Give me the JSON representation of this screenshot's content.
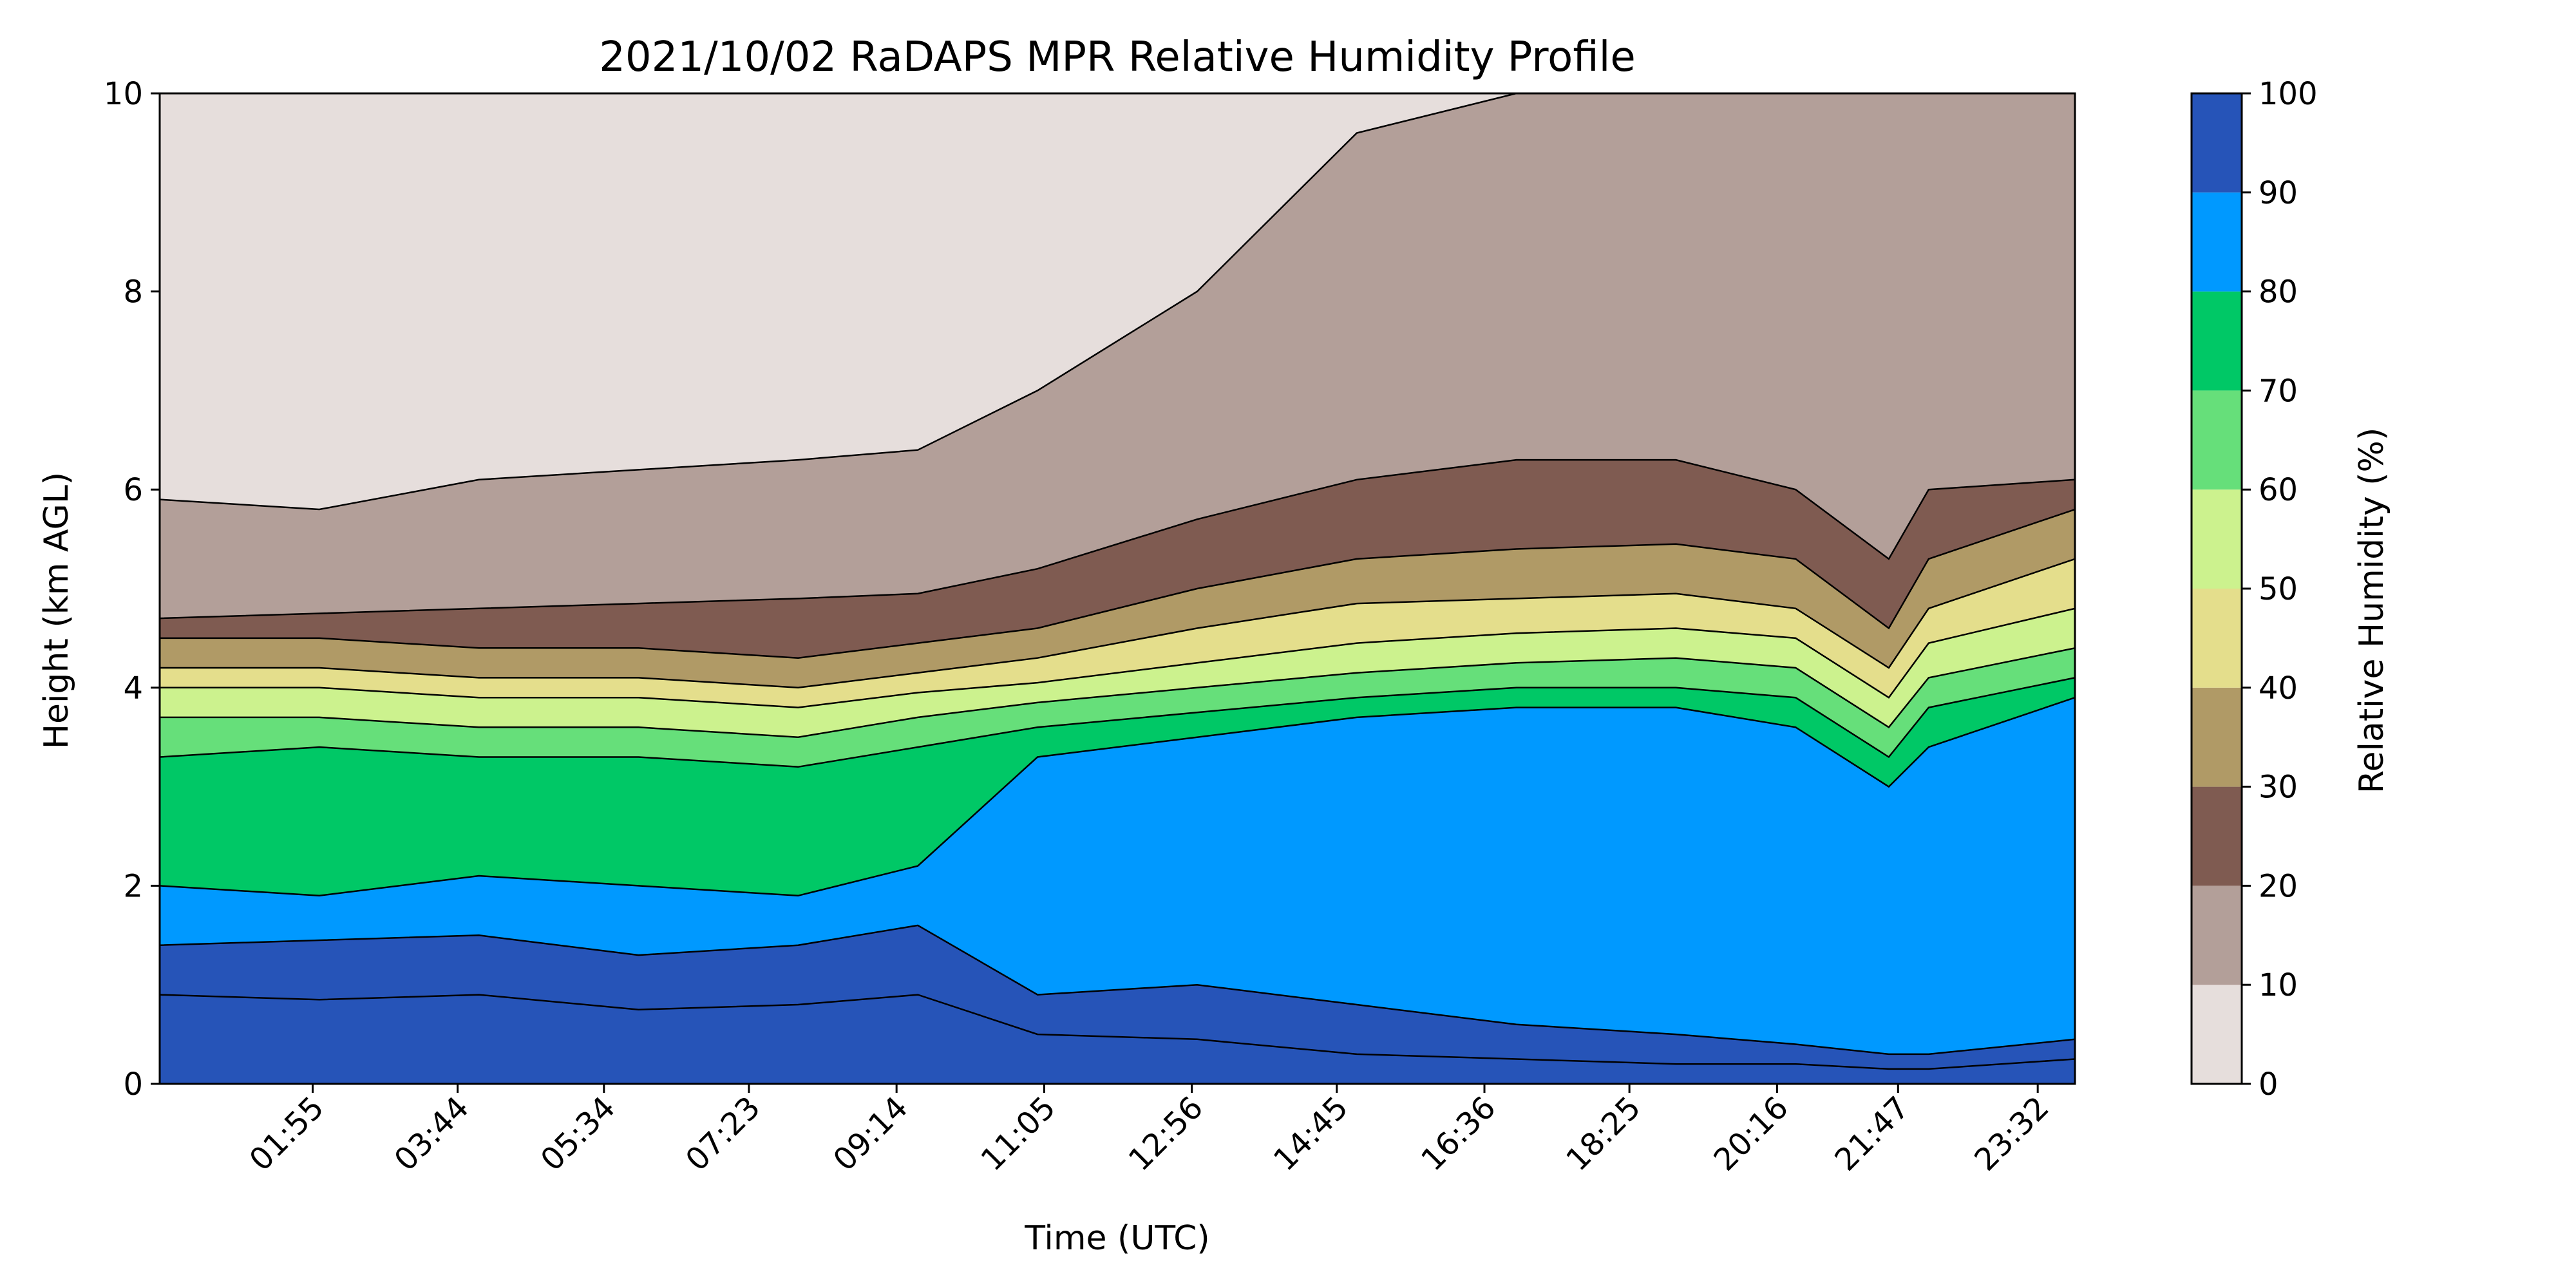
{
  "chart_data": {
    "type": "contour",
    "title": "2021/10/02 RaDAPS MPR Relative Humidity Profile",
    "xlabel": "Time (UTC)",
    "ylabel": "Height (km AGL)",
    "ylim": [
      0,
      10
    ],
    "yticks": [
      0,
      2,
      4,
      6,
      8,
      10
    ],
    "x_range_minutes": [
      0,
      1440
    ],
    "xticks": [
      {
        "label": "01:55",
        "minutes": 115
      },
      {
        "label": "03:44",
        "minutes": 224
      },
      {
        "label": "05:34",
        "minutes": 334
      },
      {
        "label": "07:23",
        "minutes": 443
      },
      {
        "label": "09:14",
        "minutes": 554
      },
      {
        "label": "11:05",
        "minutes": 665
      },
      {
        "label": "12:56",
        "minutes": 776
      },
      {
        "label": "14:45",
        "minutes": 885
      },
      {
        "label": "16:36",
        "minutes": 996
      },
      {
        "label": "18:25",
        "minutes": 1105
      },
      {
        "label": "20:16",
        "minutes": 1216
      },
      {
        "label": "21:47",
        "minutes": 1307
      },
      {
        "label": "23:32",
        "minutes": 1412
      }
    ],
    "colorbar": {
      "label": "Relative Humidity (%)",
      "ticks": [
        0,
        10,
        20,
        30,
        40,
        50,
        60,
        70,
        80,
        90,
        100
      ],
      "levels": [
        {
          "range": [
            0,
            10
          ],
          "color": "#e6dedc"
        },
        {
          "range": [
            10,
            20
          ],
          "color": "#b39f99"
        },
        {
          "range": [
            20,
            30
          ],
          "color": "#7f5b51"
        },
        {
          "range": [
            30,
            40
          ],
          "color": "#b09a66"
        },
        {
          "range": [
            40,
            50
          ],
          "color": "#e4de8c"
        },
        {
          "range": [
            50,
            60
          ],
          "color": "#ccf28e"
        },
        {
          "range": [
            60,
            70
          ],
          "color": "#66df7a"
        },
        {
          "range": [
            70,
            80
          ],
          "color": "#00c866"
        },
        {
          "range": [
            80,
            90
          ],
          "color": "#0099ff"
        },
        {
          "range": [
            90,
            100
          ],
          "color": "#2654b8"
        }
      ]
    },
    "series": [
      {
        "time_minutes": [
          0,
          120,
          240,
          360,
          480,
          570,
          660,
          780,
          900,
          1020,
          1140,
          1230,
          1300,
          1330,
          1440
        ],
        "rh_boundary_heights_km": [
          {
            "level": 90,
            "values": [
              0.9,
              0.85,
              0.9,
              0.75,
              0.8,
              0.9,
              0.5,
              0.45,
              0.3,
              0.25,
              0.2,
              0.2,
              0.15,
              0.15,
              0.25
            ]
          },
          {
            "level": 80,
            "values": [
              1.4,
              1.45,
              1.5,
              1.3,
              1.4,
              1.6,
              0.9,
              1.0,
              0.8,
              0.6,
              0.5,
              0.4,
              0.3,
              0.3,
              0.45
            ]
          },
          {
            "level": 70,
            "values": [
              2.0,
              1.9,
              2.1,
              2.0,
              1.9,
              2.2,
              3.3,
              3.5,
              3.7,
              3.8,
              3.8,
              3.6,
              3.0,
              3.4,
              3.9
            ]
          },
          {
            "level": 60,
            "values": [
              3.3,
              3.4,
              3.3,
              3.3,
              3.2,
              3.4,
              3.6,
              3.75,
              3.9,
              4.0,
              4.0,
              3.9,
              3.3,
              3.8,
              4.1
            ]
          },
          {
            "level": 50,
            "values": [
              3.7,
              3.7,
              3.6,
              3.6,
              3.5,
              3.7,
              3.85,
              4.0,
              4.15,
              4.25,
              4.3,
              4.2,
              3.6,
              4.1,
              4.4
            ]
          },
          {
            "level": 40,
            "values": [
              4.0,
              4.0,
              3.9,
              3.9,
              3.8,
              3.95,
              4.05,
              4.25,
              4.45,
              4.55,
              4.6,
              4.5,
              3.9,
              4.45,
              4.8
            ]
          },
          {
            "level": 30,
            "values": [
              4.2,
              4.2,
              4.1,
              4.1,
              4.0,
              4.15,
              4.3,
              4.6,
              4.85,
              4.9,
              4.95,
              4.8,
              4.2,
              4.8,
              5.3
            ]
          },
          {
            "level": 20,
            "values": [
              4.5,
              4.5,
              4.4,
              4.4,
              4.3,
              4.45,
              4.6,
              5.0,
              5.3,
              5.4,
              5.45,
              5.3,
              4.6,
              5.3,
              5.8
            ]
          },
          {
            "level": 10,
            "values": [
              4.7,
              4.75,
              4.8,
              4.85,
              4.9,
              4.95,
              5.2,
              5.7,
              6.1,
              6.3,
              6.3,
              6.0,
              5.3,
              6.0,
              6.1
            ]
          },
          {
            "level": 0,
            "values": [
              5.9,
              5.8,
              6.1,
              6.2,
              6.3,
              6.4,
              7.0,
              8.0,
              9.6,
              10.0,
              10.0,
              10.0,
              10.0,
              10.0,
              10.0
            ]
          }
        ]
      }
    ]
  }
}
